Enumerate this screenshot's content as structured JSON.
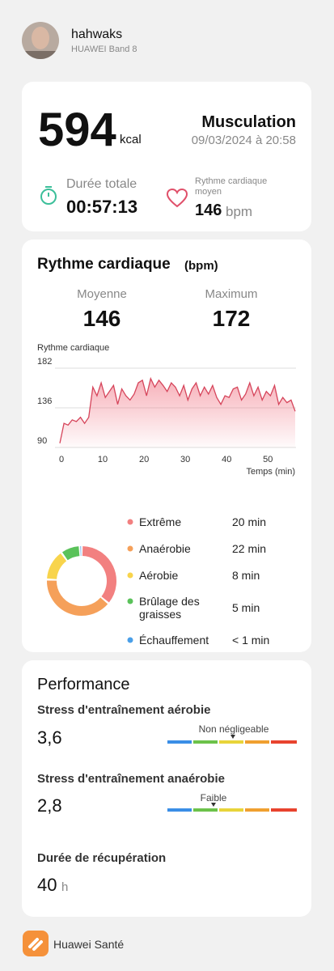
{
  "profile": {
    "name": "hahwaks",
    "device": "HUAWEI Band 8"
  },
  "summary": {
    "calories": 594,
    "calories_unit": "kcal",
    "activity": "Musculation",
    "datetime": "09/03/2024 à 20:58",
    "duration_label": "Durée totale",
    "duration": "00:57:13",
    "hr_label": "Rythme cardiaque moyen",
    "hr_value": 146,
    "hr_unit": "bpm"
  },
  "heart_rate": {
    "title": "Rythme cardiaque",
    "unit": "(bpm)",
    "avg_label": "Moyenne",
    "avg": 146,
    "max_label": "Maximum",
    "max": 172
  },
  "chart_data": [
    {
      "type": "line",
      "y_label": "Rythme cardiaque",
      "x_label": "Temps (min)",
      "color": "#d6455b",
      "grid": true,
      "x": [
        0,
        1,
        2,
        3,
        4,
        5,
        6,
        7,
        8,
        9,
        10,
        11,
        12,
        13,
        14,
        15,
        16,
        17,
        18,
        19,
        20,
        21,
        22,
        23,
        24,
        25,
        26,
        27,
        28,
        29,
        30,
        31,
        32,
        33,
        34,
        35,
        36,
        37,
        38,
        39,
        40,
        41,
        42,
        43,
        44,
        45,
        46,
        47,
        48,
        49,
        50,
        51,
        52,
        53,
        54,
        55,
        56,
        57
      ],
      "values": [
        95,
        118,
        116,
        122,
        120,
        125,
        118,
        125,
        160,
        150,
        165,
        148,
        155,
        162,
        140,
        158,
        150,
        145,
        152,
        165,
        168,
        150,
        170,
        160,
        168,
        162,
        155,
        165,
        160,
        150,
        162,
        145,
        158,
        165,
        150,
        160,
        152,
        162,
        148,
        140,
        150,
        148,
        158,
        160,
        145,
        152,
        165,
        150,
        160,
        145,
        155,
        150,
        162,
        140,
        148,
        142,
        145,
        132
      ],
      "xlim": [
        0,
        57
      ],
      "xticks": [
        0,
        10,
        20,
        30,
        40,
        50
      ],
      "ylim": [
        90,
        182
      ],
      "yticks": [
        90,
        136,
        182
      ]
    },
    {
      "type": "pie",
      "categories": [
        "Extrême",
        "Anaérobie",
        "Aérobie",
        "Brûlage des graisses",
        "Échauffement"
      ],
      "values": [
        20,
        22,
        8,
        5,
        0.5
      ],
      "value_labels": [
        "20 min",
        "22 min",
        "8 min",
        "5 min",
        "< 1 min"
      ],
      "colors": [
        "#f28080",
        "#f5a05a",
        "#f8d44c",
        "#5ac25a",
        "#4a9fe8"
      ]
    }
  ],
  "performance": {
    "title": "Performance",
    "aerobic_label": "Stress d'entraînement aérobie",
    "aerobic_value": "3,6",
    "aerobic_level": "Non négligeable",
    "anaerobic_label": "Stress d'entraînement anaérobie",
    "anaerobic_value": "2,8",
    "anaerobic_level": "Faible",
    "recovery_label": "Durée de récupération",
    "recovery_value": 40,
    "recovery_unit": "h"
  },
  "footer": {
    "app": "Huawei Santé"
  }
}
